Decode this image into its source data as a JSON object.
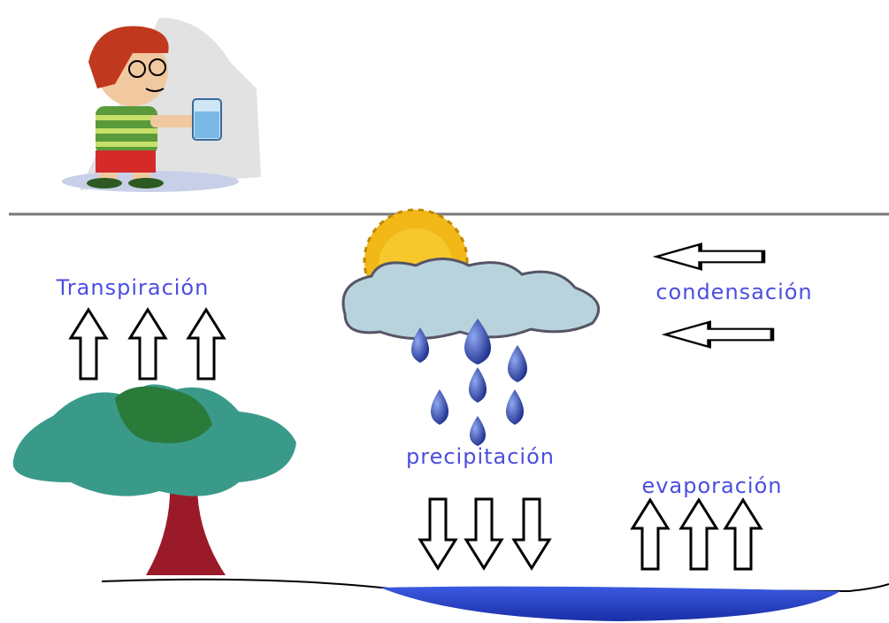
{
  "labels": {
    "transpiration": "Transpiración",
    "condensation": "condensación",
    "precipitation": "precipitación",
    "evaporation": "evaporación"
  }
}
